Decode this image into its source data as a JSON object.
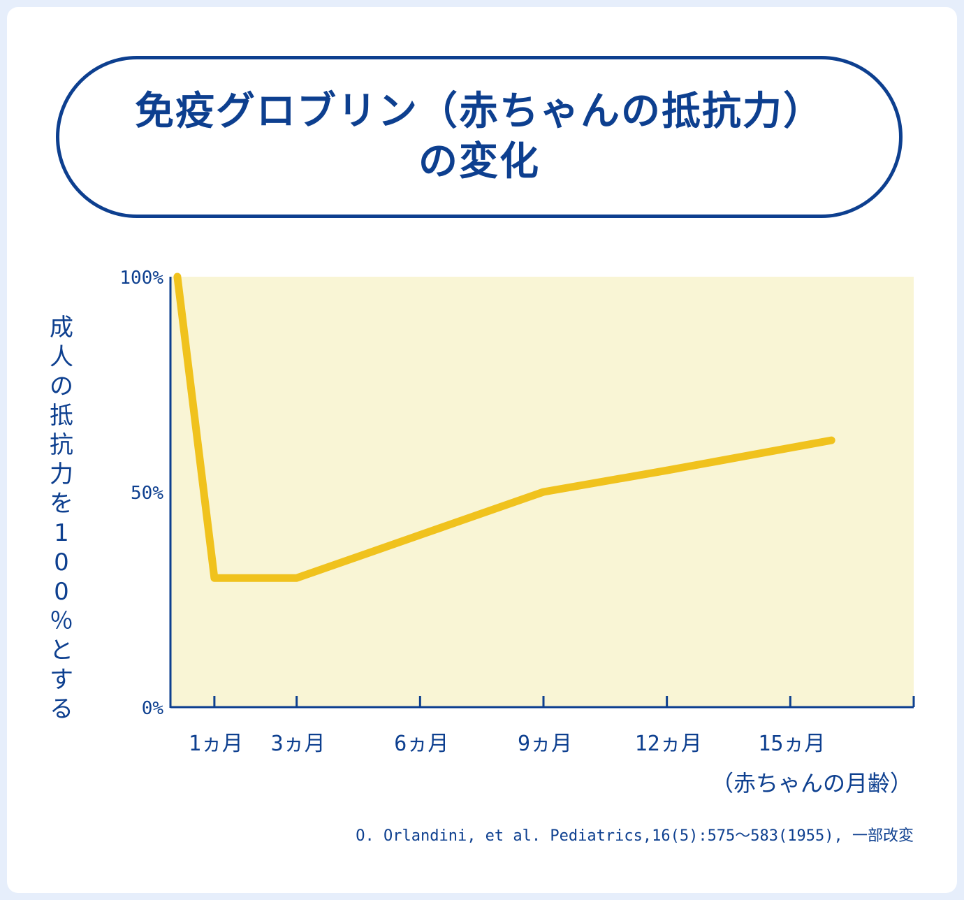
{
  "title_lines": [
    "免疫グロブリン（赤ちゃんの抵抗力）",
    "の変化"
  ],
  "colors": {
    "navy": "#0d3f8f",
    "line": "#f0c21d",
    "plot_bg": "#f9f5d5",
    "card_bg": "#ffffff",
    "page_bg": "#e6eefb"
  },
  "chart_data": {
    "type": "line",
    "ylabel": "成人の抵抗力を100％とする",
    "xlabel": "（赤ちゃんの月齢）",
    "xlim": [
      0,
      18
    ],
    "ylim": [
      0,
      100
    ],
    "y_ticks": [
      {
        "value": 0,
        "label": "0%"
      },
      {
        "value": 50,
        "label": "50%"
      },
      {
        "value": 100,
        "label": "100%"
      }
    ],
    "x_ticks": [
      {
        "value": 1,
        "label": "1ヵ月"
      },
      {
        "value": 3,
        "label": "3ヵ月"
      },
      {
        "value": 6,
        "label": "6ヵ月"
      },
      {
        "value": 9,
        "label": "9ヵ月"
      },
      {
        "value": 12,
        "label": "12ヵ月"
      },
      {
        "value": 15,
        "label": "15ヵ月"
      }
    ],
    "x_minor_ticks": [
      18
    ],
    "series": [
      {
        "x": [
          0.1,
          1,
          3,
          6,
          9,
          12,
          16
        ],
        "y": [
          100,
          30,
          30,
          40,
          50,
          55,
          62
        ]
      }
    ],
    "grid": false
  },
  "source": "O. Orlandini, et al. Pediatrics,16(5):575～583(1955), 一部改変"
}
